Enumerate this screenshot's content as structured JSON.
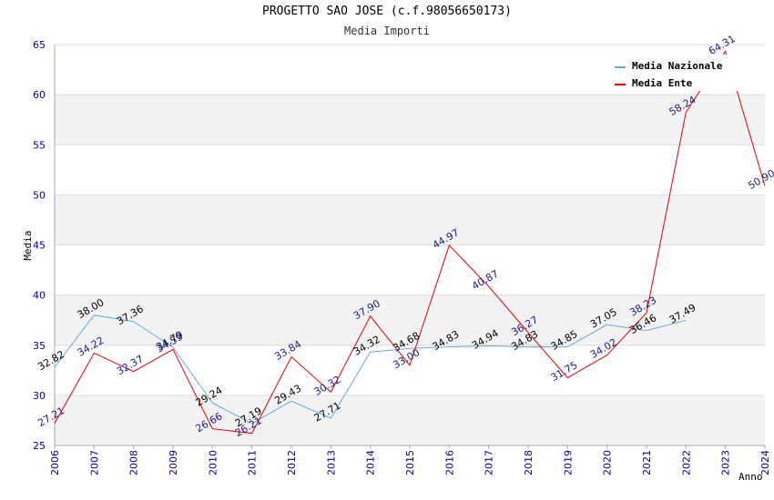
{
  "header": {
    "title": "PROGETTO SAO JOSE (c.f.98056650173)",
    "subtitle": "Media Importi"
  },
  "chart_data": {
    "type": "line",
    "title": "PROGETTO SAO JOSE (c.f.98056650173)",
    "subtitle": "Media Importi",
    "xlabel": "Anno",
    "ylabel": "Media",
    "ylim": [
      25,
      65
    ],
    "yticks": [
      25,
      30,
      35,
      40,
      45,
      50,
      55,
      60,
      65
    ],
    "x": [
      "2006",
      "2007",
      "2008",
      "2009",
      "2010",
      "2011",
      "2012",
      "2013",
      "2014",
      "2015",
      "2016",
      "2017",
      "2018",
      "2019",
      "2020",
      "2021",
      "2022",
      "2023",
      "2024"
    ],
    "grid": true,
    "legend": "top-right",
    "series": [
      {
        "name": "Media Nazionale",
        "color": "#66aadd",
        "values": [
          32.82,
          38.0,
          37.36,
          34.79,
          29.24,
          27.19,
          29.43,
          27.71,
          34.32,
          34.68,
          34.83,
          34.94,
          34.83,
          34.85,
          37.05,
          36.46,
          37.49,
          null,
          null
        ],
        "labels": [
          "32.82",
          "38.00",
          "37.36",
          "34.79",
          "29.24",
          "27.19",
          "29.43",
          "27.71",
          "34.32",
          "34.68",
          "34.83",
          "34.94",
          "34.83",
          "34.85",
          "37.05",
          "36.46",
          "37.49",
          null,
          null
        ]
      },
      {
        "name": "Media Ente",
        "color": "#ee0000",
        "values": [
          27.21,
          34.22,
          32.37,
          34.59,
          26.66,
          26.21,
          33.84,
          30.32,
          37.9,
          33.0,
          44.97,
          40.87,
          36.27,
          31.75,
          34.02,
          38.23,
          58.24,
          64.31,
          50.9
        ],
        "labels": [
          "27.21",
          "34.22",
          "32.37",
          "34.59",
          "26.66",
          "26.21",
          "33.84",
          "30.32",
          "37.90",
          "33.00",
          "44.97",
          "40.87",
          "36.27",
          "31.75",
          "34.02",
          "38.23",
          "58.24",
          "64.31",
          "50.90"
        ]
      }
    ]
  }
}
